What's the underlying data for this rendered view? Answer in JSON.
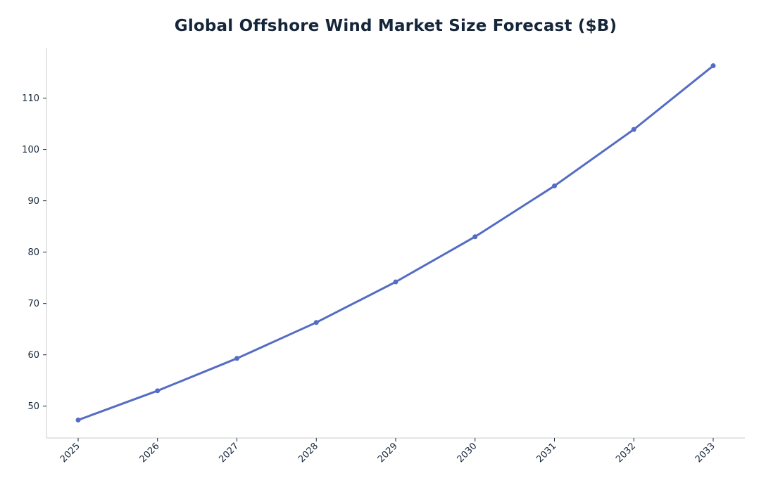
{
  "chart_data": {
    "type": "line",
    "title": "Global Offshore Wind Market Size Forecast ($B)",
    "xlabel": "",
    "ylabel": "",
    "x": [
      "2025",
      "2026",
      "2027",
      "2028",
      "2029",
      "2030",
      "2031",
      "2032",
      "2033"
    ],
    "series": [
      {
        "values": [
          47.3,
          53.0,
          59.3,
          66.3,
          74.2,
          83.0,
          92.9,
          103.9,
          116.3
        ],
        "color": "#546cc3"
      }
    ],
    "yticks": [
      50,
      60,
      70,
      80,
      90,
      100,
      110
    ],
    "ylim": [
      43.8,
      119.8
    ],
    "grid": false,
    "legend": "none",
    "spines": [
      "left",
      "bottom"
    ],
    "axis_color": "#cccccc",
    "text_color": "#16263a"
  }
}
